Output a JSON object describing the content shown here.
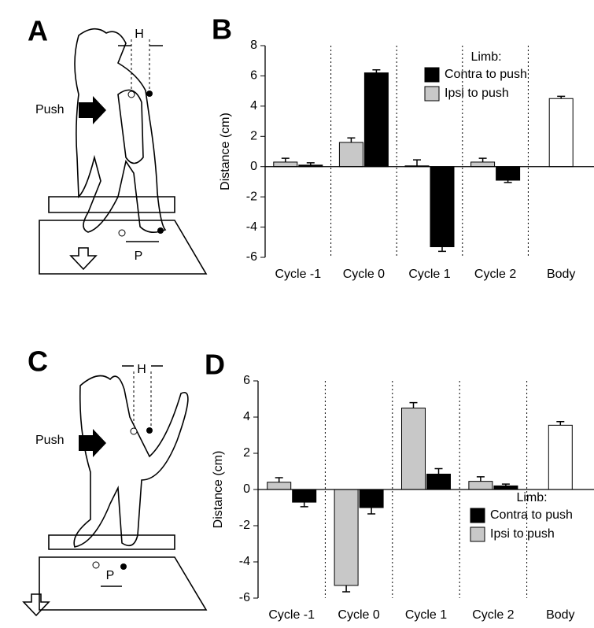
{
  "chart_data": [
    {
      "type": "bar",
      "panel": "B",
      "y_label": "Distance (cm)",
      "categories": [
        "Cycle -1",
        "Cycle 0",
        "Cycle 1",
        "Cycle 2",
        "Body"
      ],
      "series": [
        {
          "name": "Contra to push",
          "color": "#000000",
          "values": [
            0.1,
            6.2,
            -5.3,
            -0.9,
            null
          ],
          "errors": [
            0.15,
            0.2,
            0.3,
            0.15,
            null
          ]
        },
        {
          "name": "Ipsi to push",
          "color": "#c8c8c8",
          "values": [
            0.3,
            1.6,
            0.05,
            0.3,
            null
          ],
          "errors": [
            0.25,
            0.3,
            0.4,
            0.25,
            null
          ]
        }
      ],
      "body_bar": {
        "value": 4.5,
        "error": 0.15,
        "color": "#ffffff"
      },
      "legend_title": "Limb:",
      "legend": "upper right",
      "ylim": [
        -6,
        8
      ],
      "yticks": [
        -6,
        -4,
        -2,
        0,
        2,
        4,
        6,
        8
      ]
    },
    {
      "type": "bar",
      "panel": "D",
      "y_label": "Distance (cm)",
      "categories": [
        "Cycle -1",
        "Cycle 0",
        "Cycle 1",
        "Cycle 2",
        "Body"
      ],
      "series": [
        {
          "name": "Contra to push",
          "color": "#000000",
          "values": [
            -0.7,
            -1.0,
            0.85,
            0.2,
            null
          ],
          "errors": [
            0.25,
            0.35,
            0.3,
            0.1,
            null
          ]
        },
        {
          "name": "Ipsi to push",
          "color": "#c8c8c8",
          "values": [
            0.4,
            -5.3,
            4.5,
            0.45,
            null
          ],
          "errors": [
            0.25,
            0.35,
            0.3,
            0.25,
            null
          ]
        }
      ],
      "body_bar": {
        "value": 3.55,
        "error": 0.2,
        "color": "#ffffff"
      },
      "legend_title": "Limb:",
      "legend": "lower right",
      "ylim": [
        -6,
        6
      ],
      "yticks": [
        -6,
        -4,
        -2,
        0,
        2,
        4,
        6
      ]
    }
  ],
  "diagrams": [
    {
      "panel": "A",
      "h_label": "H",
      "push_label": "Push",
      "p_label": "P"
    },
    {
      "panel": "C",
      "h_label": "H",
      "push_label": "Push",
      "p_label": "P"
    }
  ]
}
